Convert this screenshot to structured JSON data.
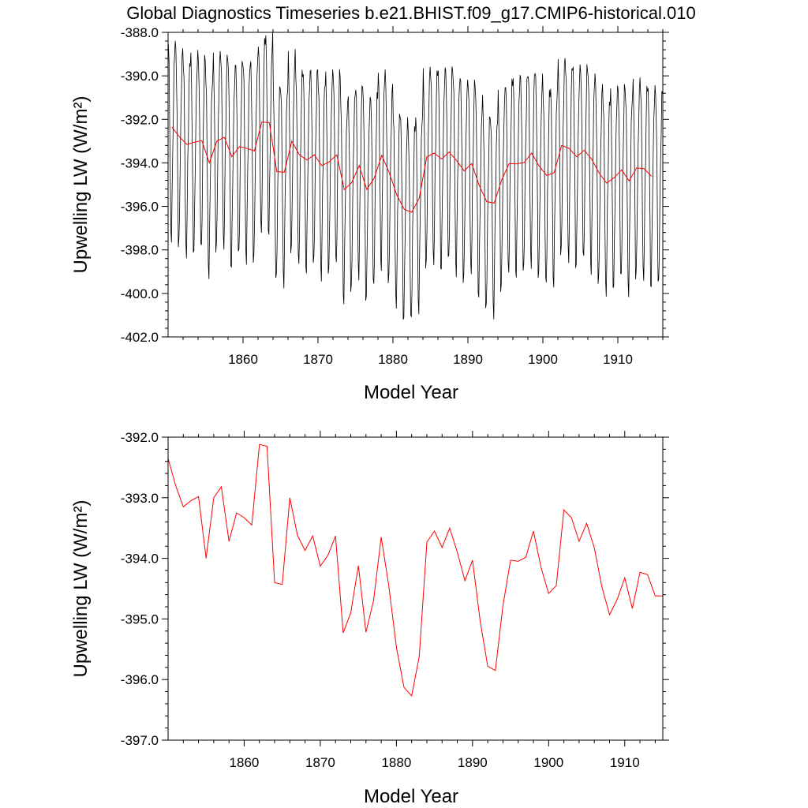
{
  "figure": {
    "title": "Global Diagnostics Timeseries b.e21.BHIST.f09_g17.CMIP6-historical.010"
  },
  "colors": {
    "monthly": "#000000",
    "annual": "#ff0000",
    "axis": "#000000"
  },
  "chart_data": [
    {
      "type": "line",
      "xlabel": "Model Year",
      "ylabel": "Upwelling LW (W/m²)",
      "xlim": [
        1850,
        1916
      ],
      "ylim": [
        -402.0,
        -388.0
      ],
      "xticks": [
        1860,
        1870,
        1880,
        1890,
        1900,
        1910
      ],
      "xtick_labels": [
        "1860",
        "1870",
        "1880",
        "1890",
        "1900",
        "1910"
      ],
      "yticks": [
        -402,
        -400,
        -398,
        -396,
        -394,
        -392,
        -390,
        -388
      ],
      "ytick_labels": [
        "-402.0",
        "-400.0",
        "-398.0",
        "-396.0",
        "-394.0",
        "-392.0",
        "-390.0",
        "-388.0"
      ],
      "grid": false,
      "series": [
        {
          "key": "monthly",
          "x_start": 1850.04,
          "x_step": 0.0833333,
          "seasonal_cycle": [
            3.8,
            2.8,
            0.6,
            -2.3,
            -4.8,
            -5.0,
            -3.3,
            -1.0,
            0.6,
            2.4,
            3.6,
            3.9
          ],
          "seasonal_cycle_note": "monthly value = annual mean of that year + seasonal_cycle[month]"
        },
        {
          "key": "annual",
          "x": [
            1850,
            1851,
            1852,
            1853,
            1854,
            1855,
            1856,
            1857,
            1858,
            1859,
            1860,
            1861,
            1862,
            1863,
            1864,
            1865,
            1866,
            1867,
            1868,
            1869,
            1870,
            1871,
            1872,
            1873,
            1874,
            1875,
            1876,
            1877,
            1878,
            1879,
            1880,
            1881,
            1882,
            1883,
            1884,
            1885,
            1886,
            1887,
            1888,
            1889,
            1890,
            1891,
            1892,
            1893,
            1894,
            1895,
            1896,
            1897,
            1898,
            1899,
            1900,
            1901,
            1902,
            1903,
            1904,
            1905,
            1906,
            1907,
            1908,
            1909,
            1910,
            1911,
            1912,
            1913,
            1914,
            1915
          ],
          "values": [
            -392.35,
            -392.8,
            -393.15,
            -393.05,
            -392.98,
            -394.0,
            -393.0,
            -392.82,
            -393.72,
            -393.25,
            -393.33,
            -393.45,
            -392.12,
            -392.15,
            -394.4,
            -394.43,
            -393.0,
            -393.62,
            -393.87,
            -393.63,
            -394.13,
            -393.95,
            -393.63,
            -395.23,
            -394.9,
            -394.12,
            -395.22,
            -394.7,
            -393.65,
            -394.45,
            -395.47,
            -396.13,
            -396.27,
            -395.62,
            -393.73,
            -393.55,
            -393.82,
            -393.5,
            -393.9,
            -394.37,
            -394.03,
            -395.03,
            -395.78,
            -395.85,
            -394.78,
            -394.03,
            -394.05,
            -393.98,
            -393.55,
            -394.15,
            -394.58,
            -394.45,
            -393.2,
            -393.33,
            -393.72,
            -393.42,
            -393.83,
            -394.47,
            -394.93,
            -394.68,
            -394.32,
            -394.83,
            -394.23,
            -394.27,
            -394.62,
            -394.62
          ]
        }
      ]
    },
    {
      "type": "line",
      "xlabel": "Model Year",
      "ylabel": "Upwelling LW (W/m²)",
      "xlim": [
        1850,
        1915
      ],
      "ylim": [
        -397.0,
        -392.0
      ],
      "xticks": [
        1860,
        1870,
        1880,
        1890,
        1900,
        1910
      ],
      "xtick_labels": [
        "1860",
        "1870",
        "1880",
        "1890",
        "1900",
        "1910"
      ],
      "yticks": [
        -397,
        -396,
        -395,
        -394,
        -393,
        -392
      ],
      "ytick_labels": [
        "-397.0",
        "-396.0",
        "-395.0",
        "-394.0",
        "-393.0",
        "-392.0"
      ],
      "grid": false,
      "series": [
        {
          "key": "annual",
          "ref": "same annual values as top panel"
        }
      ]
    }
  ]
}
